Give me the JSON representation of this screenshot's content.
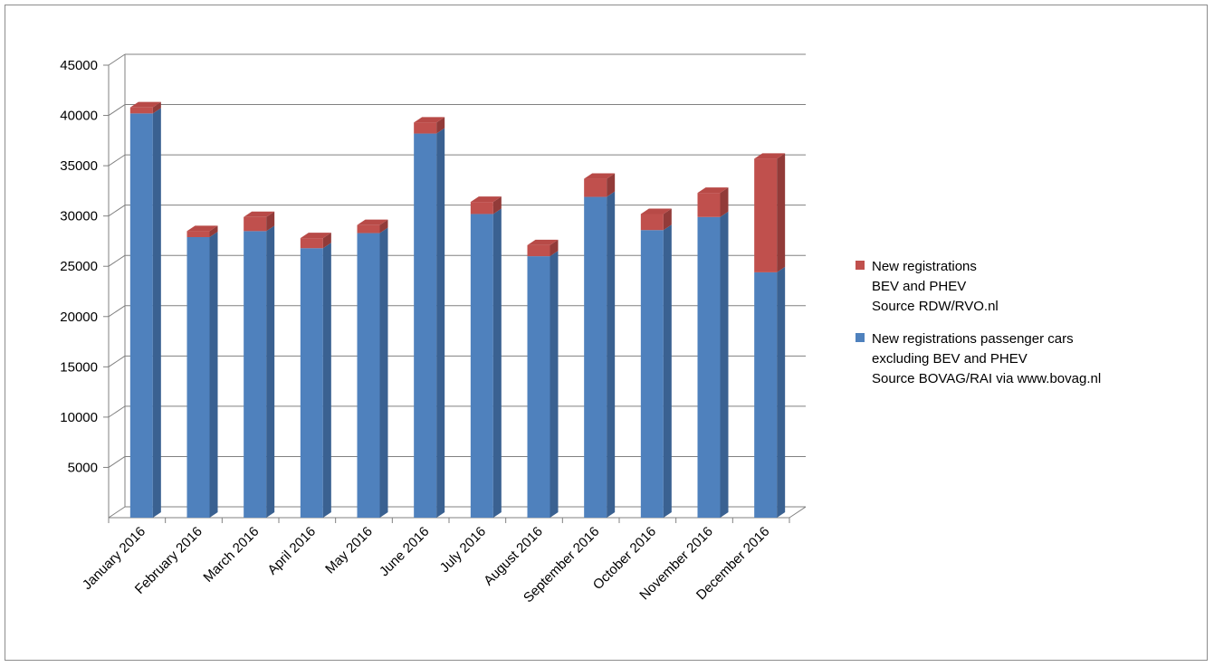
{
  "chart_data": {
    "type": "bar",
    "stacked": true,
    "three_d": true,
    "title": "",
    "xlabel": "",
    "ylabel": "",
    "ylim": [
      0,
      45000
    ],
    "yticks": [
      5000,
      10000,
      15000,
      20000,
      25000,
      30000,
      35000,
      40000,
      45000
    ],
    "grid": true,
    "legend_position": "right",
    "categories": [
      "January 2016",
      "February 2016",
      "March 2016",
      "April 2016",
      "May 2016",
      "June 2016",
      "July 2016",
      "August 2016",
      "September 2016",
      "October 2016",
      "November 2016",
      "December 2016"
    ],
    "series": [
      {
        "name_lines": [
          "New registrations passenger cars",
          "excluding BEV and PHEV",
          "Source BOVAG/RAI via www.bovag.nl"
        ],
        "color": "#4f81bd",
        "side_color": "#3a6191",
        "top_color": "#5a8ed0",
        "values": [
          40200,
          27900,
          28500,
          26800,
          28300,
          38200,
          30200,
          26000,
          31900,
          28600,
          29900,
          24400
        ]
      },
      {
        "name_lines": [
          "New registrations",
          "BEV and PHEV",
          "Source RDW/RVO.nl"
        ],
        "color": "#c0504d",
        "side_color": "#923b39",
        "top_color": "#b84a47",
        "values": [
          600,
          600,
          1400,
          1000,
          800,
          1100,
          1200,
          1100,
          1800,
          1600,
          2400,
          11300
        ]
      }
    ]
  }
}
